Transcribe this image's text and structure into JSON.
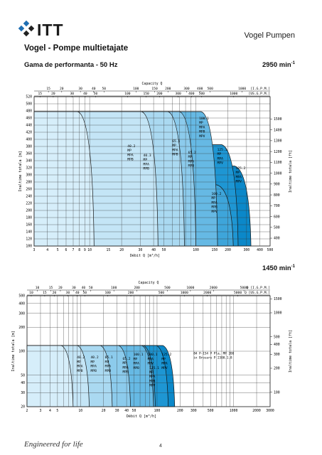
{
  "header": {
    "brand": "ITT",
    "brand_right": "Vogel Pumpen",
    "title": "Vogel - Pompe multietajate",
    "subtitle": "Gama de performanta - 50 Hz"
  },
  "footer": {
    "tagline": "Engineered for life",
    "page_number": "4"
  },
  "colors": {
    "logo_blue": "#1f6fb3",
    "logo_dark": "#222222",
    "fill_light": "#cde9f8",
    "fill_dark": "#0f93d3",
    "grid": "#222222"
  },
  "chart_data": [
    {
      "type": "area",
      "speed": "2950 min",
      "speed_exp": "-1",
      "capacity_label": "Capacity Q",
      "top_axis_igpm_ticks": [
        "15",
        "20",
        "30",
        "40",
        "50",
        "100",
        "150",
        "200",
        "300",
        "400",
        "500",
        "1000",
        "[I.G.P.M.]"
      ],
      "top_axis_usgpm_ticks": [
        "15",
        "20",
        "30",
        "40",
        "50",
        "100",
        "150",
        "200",
        "300",
        "400",
        "500",
        "1000",
        "[US.G.P.M.]"
      ],
      "xlabel": "Débit Q [m³/h]",
      "x_ticks": [
        "3",
        "4",
        "5",
        "6",
        "7",
        "8",
        "9",
        "10",
        "15",
        "20",
        "30",
        "40",
        "50",
        "100",
        "150",
        "200",
        "300",
        "400",
        "500"
      ],
      "x_log": true,
      "xlim": [
        3,
        500
      ],
      "ylabel_left": "Inaltime totala  [m]",
      "ylabel_right": "Inaltime totala  [ft]",
      "ylim": [
        100,
        520
      ],
      "y_left_ticks": [
        520,
        500,
        480,
        460,
        440,
        420,
        400,
        380,
        360,
        340,
        320,
        300,
        280,
        260,
        240,
        220,
        200,
        180,
        160,
        140,
        120,
        100
      ],
      "y_right_ticks": [
        1500,
        1400,
        1300,
        1200,
        1100,
        1000,
        900,
        800,
        700,
        600,
        500,
        400
      ],
      "series": [
        {
          "labels": [
            "40.2",
            "MP",
            "MPA",
            "MPB"
          ],
          "q_end": 11,
          "head": 478,
          "q_label": 22,
          "h_label": 378,
          "shade": 0
        },
        {
          "labels": [
            "40.3",
            "MP",
            "MPA",
            "MPB"
          ],
          "q_end": 44,
          "head": 478,
          "q_label": 31,
          "h_label": 352,
          "shade": 1
        },
        {
          "labels": [
            "65.1",
            "MP",
            "MPA",
            "MPB"
          ],
          "q_end": 78,
          "head": 478,
          "q_label": 58,
          "h_label": 392,
          "shade": 2
        },
        {
          "labels": [
            "65.2",
            "MP",
            "MPA",
            "MPB"
          ],
          "q_end": 100,
          "head": 478,
          "q_label": 82,
          "h_label": 360,
          "shade": 3
        },
        {
          "labels": [
            "100.1",
            "MP",
            "MPA",
            "MPB",
            "MPV"
          ],
          "q_end": 160,
          "head": 478,
          "q_label": 104,
          "h_label": 456,
          "shade": 4
        },
        {
          "labels": [
            "100.2",
            "MP",
            "MPA",
            "MPB",
            "MPV"
          ],
          "q_end": 225,
          "head": 272,
          "q_label": 136,
          "h_label": 244,
          "shade": 5
        },
        {
          "labels": [
            "125.1",
            "MP",
            "MPA",
            "MPV"
          ],
          "q_end": 250,
          "head": 385,
          "q_label": 154,
          "h_label": 368,
          "shade": 6
        },
        {
          "labels": [
            "125.2",
            "MP",
            "MPA",
            "MPV"
          ],
          "q_end": 330,
          "head": 325,
          "q_label": 230,
          "h_label": 316,
          "shade": 7
        }
      ]
    },
    {
      "type": "area",
      "speed": "1450 min",
      "speed_exp": "-1",
      "capacity_label": "Capacity Q",
      "top_axis_igpm_ticks": [
        "10",
        "15",
        "20",
        "30",
        "40",
        "50",
        "100",
        "200",
        "500",
        "1000",
        "2000",
        "5000",
        "Q [I.G.P.M.]"
      ],
      "top_axis_usgpm_ticks": [
        "10",
        "15",
        "20",
        "30",
        "40",
        "50",
        "100",
        "200",
        "500",
        "1000",
        "2000",
        "5000",
        "Q [US.G.P.M.]"
      ],
      "xlabel": "Débit Q [m³/h]",
      "x_ticks": [
        "2",
        "3",
        "4",
        "5",
        "10",
        "20",
        "30",
        "40",
        "50",
        "100",
        "200",
        "300",
        "500",
        "1000",
        "2000",
        "3000"
      ],
      "x_log": true,
      "xlim": [
        2,
        3000
      ],
      "ylabel_left": "Inaltime totala  [m]",
      "ylabel_right": "Inaltime totala  [ft]",
      "y_log": true,
      "ylim": [
        20,
        500
      ],
      "y_left_ticks": [
        500,
        400,
        300,
        200,
        100,
        50,
        40,
        30,
        20
      ],
      "y_right_ticks": [
        1500,
        1000,
        500,
        400,
        300,
        200,
        100
      ],
      "series": [
        {
          "labels": [
            "40.2",
            "MP",
            "MPA",
            "MPB"
          ],
          "q_end": 8,
          "head": 118,
          "q_label": 8.6,
          "h_label": 81,
          "shade": 0
        },
        {
          "labels": [
            "40.2",
            "MP",
            "MPA",
            "MPB"
          ],
          "q_end": 13,
          "head": 118,
          "q_label": 13,
          "h_label": 81,
          "shade": 1
        },
        {
          "labels": [
            "65.1",
            "MP",
            "MPA",
            "MPB"
          ],
          "q_end": 26,
          "head": 118,
          "q_label": 20,
          "h_label": 81,
          "shade": 2
        },
        {
          "labels": [
            "65.2",
            "MP",
            "MPA",
            "MPB"
          ],
          "q_end": 45,
          "head": 118,
          "q_label": 34,
          "h_label": 78,
          "shade": 3
        },
        {
          "labels": [
            "100.1",
            "MP",
            "MPA",
            "MPB"
          ],
          "q_end": 90,
          "head": 118,
          "q_label": 47,
          "h_label": 88,
          "shade": 4
        },
        {
          "labels": [
            "100.1",
            "MPA",
            "MPV"
          ],
          "q_end": 95,
          "head": 118,
          "q_label": 72,
          "h_label": 88,
          "shade": 5
        },
        {
          "labels": [
            "125.1",
            "MP",
            "MPA",
            "MPB",
            "MPV"
          ],
          "q_end": 140,
          "head": 118,
          "q_label": 76,
          "h_label": 60,
          "shade": 6
        },
        {
          "labels": [
            "125.2",
            "MP",
            "MPA",
            "MPV"
          ],
          "q_end": 170,
          "head": 118,
          "q_label": 110,
          "h_label": 88,
          "shade": 7
        }
      ],
      "note_lines": [
        "84 P-154 P Pla, MP 200",
        "in Brosare P 2300.1.8"
      ],
      "note_q": 300,
      "note_h": 91
    }
  ]
}
